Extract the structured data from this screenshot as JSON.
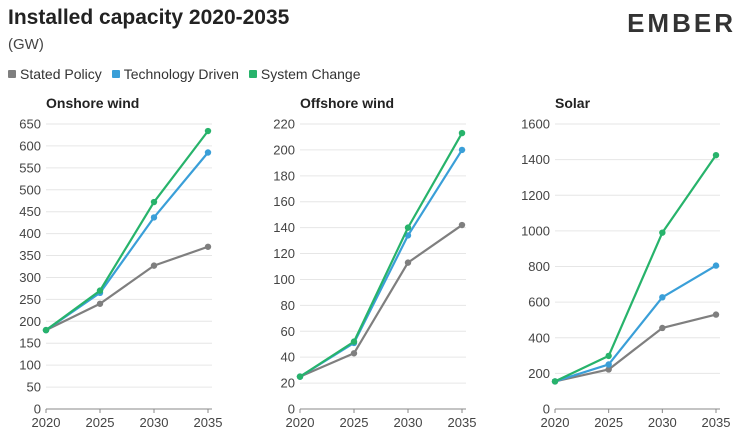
{
  "header": {
    "title": "Installed capacity 2020-2035",
    "subtitle": "(GW)",
    "logo": "EMBER"
  },
  "colors": {
    "Stated Policy": "#7f7f7f",
    "Technology Driven": "#3a9fd8",
    "System Change": "#27b36b"
  },
  "legend": [
    "Stated Policy",
    "Technology Driven",
    "System Change"
  ],
  "chart_data": [
    {
      "type": "line",
      "title": "Onshore wind",
      "categories": [
        "2020",
        "2025",
        "2030",
        "2035"
      ],
      "ylim": [
        0,
        650
      ],
      "yticks": [
        0,
        50,
        100,
        150,
        200,
        250,
        300,
        350,
        400,
        450,
        500,
        550,
        600,
        650
      ],
      "series": [
        {
          "name": "Stated Policy",
          "values": [
            180,
            240,
            327,
            370
          ]
        },
        {
          "name": "Technology Driven",
          "values": [
            180,
            265,
            437,
            585
          ]
        },
        {
          "name": "System Change",
          "values": [
            180,
            270,
            472,
            634
          ]
        }
      ]
    },
    {
      "type": "line",
      "title": "Offshore wind",
      "categories": [
        "2020",
        "2025",
        "2030",
        "2035"
      ],
      "ylim": [
        0,
        220
      ],
      "yticks": [
        0,
        20,
        40,
        60,
        80,
        100,
        120,
        140,
        160,
        180,
        200,
        220
      ],
      "series": [
        {
          "name": "Stated Policy",
          "values": [
            25,
            43,
            113,
            142
          ]
        },
        {
          "name": "Technology Driven",
          "values": [
            25,
            51,
            134,
            200
          ]
        },
        {
          "name": "System Change",
          "values": [
            25,
            52,
            140,
            213
          ]
        }
      ]
    },
    {
      "type": "line",
      "title": "Solar",
      "categories": [
        "2020",
        "2025",
        "2030",
        "2035"
      ],
      "ylim": [
        0,
        1600
      ],
      "yticks": [
        0,
        200,
        400,
        600,
        800,
        1000,
        1200,
        1400,
        1600
      ],
      "series": [
        {
          "name": "Stated Policy",
          "values": [
            155,
            222,
            455,
            530
          ]
        },
        {
          "name": "Technology Driven",
          "values": [
            155,
            250,
            627,
            805
          ]
        },
        {
          "name": "System Change",
          "values": [
            155,
            298,
            990,
            1425
          ]
        }
      ]
    }
  ]
}
